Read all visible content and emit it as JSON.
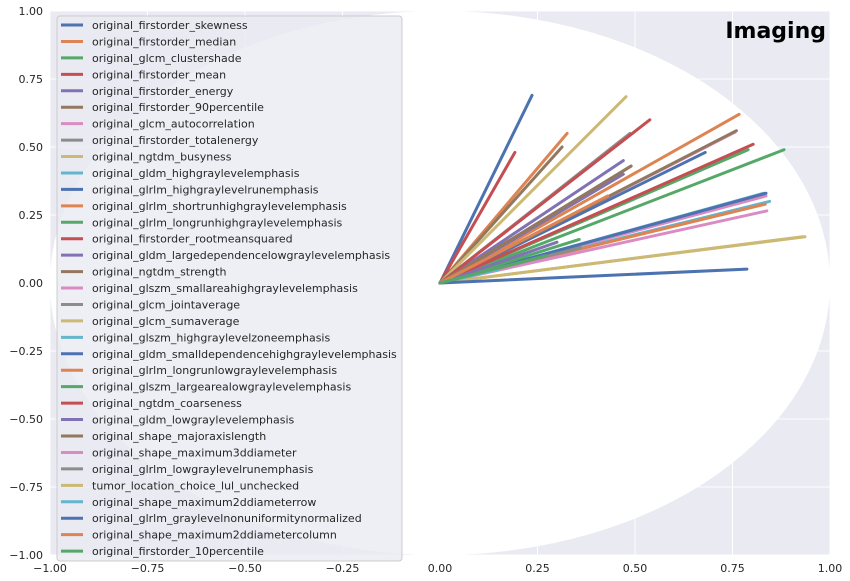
{
  "chart_data": {
    "type": "line",
    "title": "Imaging",
    "xlim": [
      -1,
      1
    ],
    "ylim": [
      -1,
      1
    ],
    "xticks": [
      "−1.00",
      "−0.75",
      "−0.50",
      "−0.25",
      "0.00",
      "0.25",
      "0.50",
      "0.75",
      "1.00"
    ],
    "yticks": [
      "1.00",
      "0.75",
      "0.50",
      "0.25",
      "0.00",
      "−0.25",
      "−0.50",
      "−0.75",
      "−1.00"
    ],
    "grid": true,
    "legend_placement": "upper-left",
    "background": "#EAEAF2",
    "circle_fill": "#FFFFFF",
    "series": [
      {
        "name": "original_firstorder_skewness",
        "color": "#4C72B0",
        "x": [
          0,
          0.236
        ],
        "y": [
          0,
          0.69
        ]
      },
      {
        "name": "original_firstorder_median",
        "color": "#DD8452",
        "x": [
          0,
          0.326
        ],
        "y": [
          0,
          0.55
        ]
      },
      {
        "name": "original_glcm_clustershade",
        "color": "#55A868",
        "x": [
          0,
          0.882
        ],
        "y": [
          0,
          0.49
        ]
      },
      {
        "name": "original_firstorder_mean",
        "color": "#C44E52",
        "x": [
          0,
          0.192
        ],
        "y": [
          0,
          0.48
        ]
      },
      {
        "name": "original_firstorder_energy",
        "color": "#8172B3",
        "x": [
          0,
          0.47
        ],
        "y": [
          0,
          0.45
        ]
      },
      {
        "name": "original_firstorder_90percentile",
        "color": "#937860",
        "x": [
          0,
          0.313
        ],
        "y": [
          0,
          0.5
        ]
      },
      {
        "name": "original_glcm_autocorrelation",
        "color": "#DA8BC3",
        "x": [
          0,
          0.757
        ],
        "y": [
          0,
          0.555
        ]
      },
      {
        "name": "original_firstorder_totalenergy",
        "color": "#8C8C8C",
        "x": [
          0,
          0.487
        ],
        "y": [
          0,
          0.55
        ]
      },
      {
        "name": "original_ngtdm_busyness",
        "color": "#CCB974",
        "x": [
          0,
          0.477
        ],
        "y": [
          0,
          0.685
        ]
      },
      {
        "name": "original_gldm_highgraylevelemphasis",
        "color": "#64B5CD",
        "x": [
          0,
          0.845
        ],
        "y": [
          0,
          0.3
        ]
      },
      {
        "name": "original_glrlm_highgraylevelrunemphasis",
        "color": "#4C72B0",
        "x": [
          0,
          0.68
        ],
        "y": [
          0,
          0.48
        ]
      },
      {
        "name": "original_glrlm_shortrunhighgraylevelemphasis",
        "color": "#DD8452",
        "x": [
          0,
          0.767
        ],
        "y": [
          0,
          0.62
        ]
      },
      {
        "name": "original_glrlm_longrunhighgraylevelemphasis",
        "color": "#55A868",
        "x": [
          0,
          0.79
        ],
        "y": [
          0,
          0.49
        ]
      },
      {
        "name": "original_firstorder_rootmeansquared",
        "color": "#C44E52",
        "x": [
          0,
          0.538
        ],
        "y": [
          0,
          0.6
        ]
      },
      {
        "name": "original_gldm_largedependencelowgraylevelemphasis",
        "color": "#8172B3",
        "x": [
          0,
          0.47
        ],
        "y": [
          0,
          0.4
        ]
      },
      {
        "name": "original_ngtdm_strength",
        "color": "#937860",
        "x": [
          0,
          0.76
        ],
        "y": [
          0,
          0.56
        ]
      },
      {
        "name": "original_glszm_smallareahighgraylevelemphasis",
        "color": "#DA8BC3",
        "x": [
          0,
          0.836
        ],
        "y": [
          0,
          0.32
        ]
      },
      {
        "name": "original_glcm_jointaverage",
        "color": "#8C8C8C",
        "x": [
          0,
          0.49
        ],
        "y": [
          0,
          0.43
        ]
      },
      {
        "name": "original_glcm_sumaverage",
        "color": "#CCB974",
        "x": [
          0,
          0.936
        ],
        "y": [
          0,
          0.17
        ]
      },
      {
        "name": "original_glszm_highgraylevelzoneemphasis",
        "color": "#64B5CD",
        "x": [
          0,
          0.83
        ],
        "y": [
          0,
          0.33
        ]
      },
      {
        "name": "original_gldm_smalldependencehighgraylevelemphasis",
        "color": "#4C72B0",
        "x": [
          0,
          0.836
        ],
        "y": [
          0,
          0.33
        ]
      },
      {
        "name": "original_glrlm_longrunlowgraylevelemphasis",
        "color": "#DD8452",
        "x": [
          0,
          0.834
        ],
        "y": [
          0,
          0.29
        ]
      },
      {
        "name": "original_glszm_largearealowgraylevelemphasis",
        "color": "#55A868",
        "x": [
          0,
          0.357
        ],
        "y": [
          0,
          0.16
        ]
      },
      {
        "name": "original_ngtdm_coarseness",
        "color": "#C44E52",
        "x": [
          0,
          0.803
        ],
        "y": [
          0,
          0.51
        ]
      },
      {
        "name": "original_gldm_lowgraylevelemphasis",
        "color": "#8172B3",
        "x": [
          0,
          0.3
        ],
        "y": [
          0,
          0.15
        ]
      },
      {
        "name": "original_shape_majoraxislength",
        "color": "#937860",
        "x": [
          0,
          0.49
        ],
        "y": [
          0,
          0.43
        ]
      },
      {
        "name": "original_shape_maximum3ddiameter",
        "color": "#DA8BC3",
        "x": [
          0,
          0.838
        ],
        "y": [
          0,
          0.265
        ]
      },
      {
        "name": "original_glrlm_lowgraylevelrunemphasis",
        "color": "#8C8C8C",
        "x": [
          0,
          0.36
        ],
        "y": [
          0,
          0.13
        ]
      },
      {
        "name": "tumor_location_choice_lul_unchecked",
        "color": "#CCB974",
        "x": [
          0,
          0.93
        ],
        "y": [
          0,
          0.17
        ]
      },
      {
        "name": "original_shape_maximum2ddiameterrow",
        "color": "#64B5CD",
        "x": [
          0,
          0.15
        ],
        "y": [
          0,
          0.05
        ]
      },
      {
        "name": "original_glrlm_graylevelnonuniformitynormalized",
        "color": "#4C72B0",
        "x": [
          0,
          0.787
        ],
        "y": [
          0,
          0.051
        ]
      },
      {
        "name": "original_shape_maximum2ddiametercolumn",
        "color": "#DD8452",
        "x": [
          0,
          0.43
        ],
        "y": [
          0,
          0.32
        ]
      },
      {
        "name": "original_firstorder_10percentile",
        "color": "#55A868",
        "x": [
          0,
          0.27
        ],
        "y": [
          0,
          0.1
        ]
      }
    ]
  }
}
